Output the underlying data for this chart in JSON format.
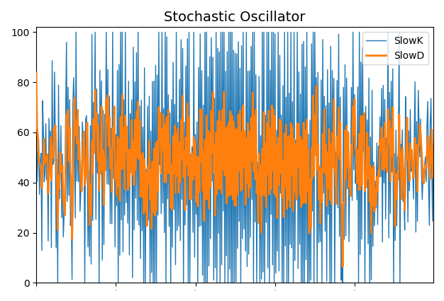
{
  "title": "Stochastic Oscillator",
  "slowk_color": "#1f77b4",
  "slowd_color": "#ff7f0e",
  "slowk_label": "SlowK",
  "slowd_label": "SlowD",
  "ylim": [
    0,
    102
  ],
  "yticks": [
    0,
    20,
    40,
    60,
    80,
    100
  ],
  "n_points": 500,
  "seed": 7,
  "linewidth_k": 1.0,
  "linewidth_d": 2.0,
  "legend_loc": "upper right",
  "legend_fontsize": 10,
  "title_fontsize": 14
}
